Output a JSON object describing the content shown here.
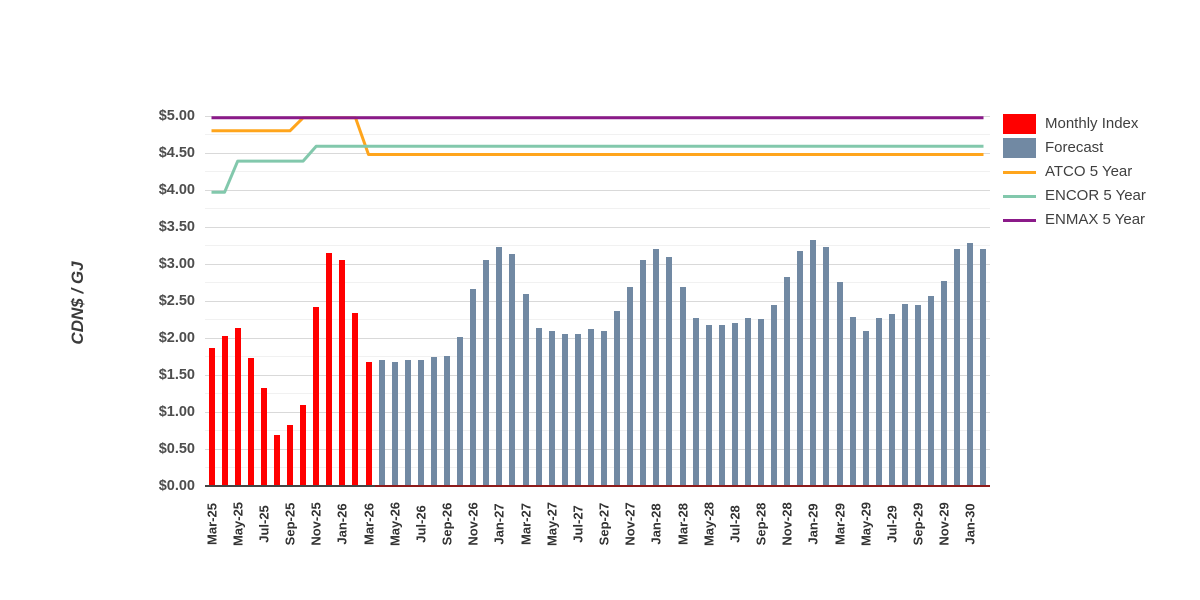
{
  "chart_data": {
    "type": "bar",
    "title": "",
    "ylabel": "CDN$ / GJ",
    "xlabel": "",
    "ylim": [
      0,
      5
    ],
    "ytick_labels": [
      "$0.00",
      "$0.50",
      "$1.00",
      "$1.50",
      "$2.00",
      "$2.50",
      "$3.00",
      "$3.50",
      "$4.00",
      "$4.50",
      "$5.00"
    ],
    "minor_grid_step": 0.25,
    "grid": true,
    "legend_position": "right",
    "xtick_every": 2,
    "x": [
      "Mar-25",
      "Apr-25",
      "May-25",
      "Jun-25",
      "Jul-25",
      "Aug-25",
      "Sep-25",
      "Oct-25",
      "Nov-25",
      "Dec-25",
      "Jan-26",
      "Feb-26",
      "Mar-26",
      "Apr-26",
      "May-26",
      "Jun-26",
      "Jul-26",
      "Aug-26",
      "Sep-26",
      "Oct-26",
      "Nov-26",
      "Dec-26",
      "Jan-27",
      "Feb-27",
      "Mar-27",
      "Apr-27",
      "May-27",
      "Jun-27",
      "Jul-27",
      "Aug-27",
      "Sep-27",
      "Oct-27",
      "Nov-27",
      "Dec-27",
      "Jan-28",
      "Feb-28",
      "Mar-28",
      "Apr-28",
      "May-28",
      "Jun-28",
      "Jul-28",
      "Aug-28",
      "Sep-28",
      "Oct-28",
      "Nov-28",
      "Dec-28",
      "Jan-29",
      "Feb-29",
      "Mar-29",
      "Apr-29",
      "May-29",
      "Jun-29",
      "Jul-29",
      "Aug-29",
      "Sep-29",
      "Oct-29",
      "Nov-29",
      "Dec-29",
      "Jan-30",
      "Feb-30"
    ],
    "series": [
      {
        "name": "Monthly Index",
        "type": "bar",
        "color": "#ff0000",
        "values": [
          1.86,
          2.03,
          2.14,
          1.73,
          1.32,
          0.69,
          0.82,
          1.09,
          2.42,
          3.15,
          3.05,
          2.34,
          1.68,
          null,
          null,
          null,
          null,
          null,
          null,
          null,
          null,
          null,
          null,
          null,
          null,
          null,
          null,
          null,
          null,
          null,
          null,
          null,
          null,
          null,
          null,
          null,
          null,
          null,
          null,
          null,
          null,
          null,
          null,
          null,
          null,
          null,
          null,
          null,
          null,
          null,
          null,
          null,
          null,
          null,
          null,
          null,
          null,
          null,
          null,
          null
        ]
      },
      {
        "name": "Forecast",
        "type": "bar",
        "color": "#7189a3",
        "values": [
          null,
          null,
          null,
          null,
          null,
          null,
          null,
          null,
          null,
          null,
          null,
          null,
          null,
          1.71,
          1.67,
          1.7,
          1.7,
          1.74,
          1.76,
          2.02,
          2.66,
          3.06,
          3.23,
          3.14,
          2.6,
          2.14,
          2.09,
          2.05,
          2.05,
          2.12,
          2.09,
          2.36,
          2.69,
          3.05,
          3.2,
          3.09,
          2.69,
          2.27,
          2.18,
          2.17,
          2.21,
          2.27,
          2.26,
          2.44,
          2.82,
          3.18,
          3.32,
          3.23,
          2.76,
          2.28,
          2.1,
          2.27,
          2.33,
          2.46,
          2.45,
          2.57,
          2.77,
          3.21,
          3.29,
          3.21
        ]
      },
      {
        "name": "ATCO 5 Year",
        "type": "line",
        "color": "#ffa51c",
        "values": [
          4.8,
          4.8,
          4.8,
          4.8,
          4.8,
          4.8,
          4.8,
          5.0,
          5.0,
          5.0,
          5.0,
          5.0,
          4.48,
          4.48,
          4.48,
          4.48,
          4.48,
          4.48,
          4.48,
          4.48,
          4.48,
          4.48,
          4.48,
          4.48,
          4.48,
          4.48,
          4.48,
          4.48,
          4.48,
          4.48,
          4.48,
          4.48,
          4.48,
          4.48,
          4.48,
          4.48,
          4.48,
          4.48,
          4.48,
          4.48,
          4.48,
          4.48,
          4.48,
          4.48,
          4.48,
          4.48,
          4.48,
          4.48,
          4.48,
          4.48,
          4.48,
          4.48,
          4.48,
          4.48,
          4.48,
          4.48,
          4.48,
          4.48,
          4.48,
          4.48
        ]
      },
      {
        "name": "ENCOR 5 Year",
        "type": "line",
        "color": "#82c8ac",
        "values": [
          3.97,
          3.97,
          4.39,
          4.39,
          4.39,
          4.39,
          4.39,
          4.39,
          4.59,
          4.59,
          4.59,
          4.59,
          4.59,
          4.59,
          4.59,
          4.59,
          4.59,
          4.59,
          4.59,
          4.59,
          4.59,
          4.59,
          4.59,
          4.59,
          4.59,
          4.59,
          4.59,
          4.59,
          4.59,
          4.59,
          4.59,
          4.59,
          4.59,
          4.59,
          4.59,
          4.59,
          4.59,
          4.59,
          4.59,
          4.59,
          4.59,
          4.59,
          4.59,
          4.59,
          4.59,
          4.59,
          4.59,
          4.59,
          4.59,
          4.59,
          4.59,
          4.59,
          4.59,
          4.59,
          4.59,
          4.59,
          4.59,
          4.59,
          4.59,
          4.59
        ]
      },
      {
        "name": "ENMAX 5 Year",
        "type": "line",
        "color": "#8b1a89",
        "values": [
          5.0,
          5.0,
          5.0,
          5.0,
          5.0,
          5.0,
          5.0,
          5.0,
          5.0,
          5.0,
          5.0,
          5.0,
          5.0,
          5.0,
          5.0,
          5.0,
          5.0,
          5.0,
          5.0,
          5.0,
          5.0,
          5.0,
          5.0,
          5.0,
          5.0,
          5.0,
          5.0,
          5.0,
          5.0,
          5.0,
          5.0,
          5.0,
          5.0,
          5.0,
          5.0,
          5.0,
          5.0,
          5.0,
          5.0,
          5.0,
          5.0,
          5.0,
          5.0,
          5.0,
          5.0,
          5.0,
          5.0,
          5.0,
          5.0,
          5.0,
          5.0,
          5.0,
          5.0,
          5.0,
          5.0,
          5.0,
          5.0,
          5.0,
          5.0,
          5.0
        ]
      }
    ],
    "forecast_baseline_color": "#8e1b1b",
    "axis_color": "#454545"
  }
}
